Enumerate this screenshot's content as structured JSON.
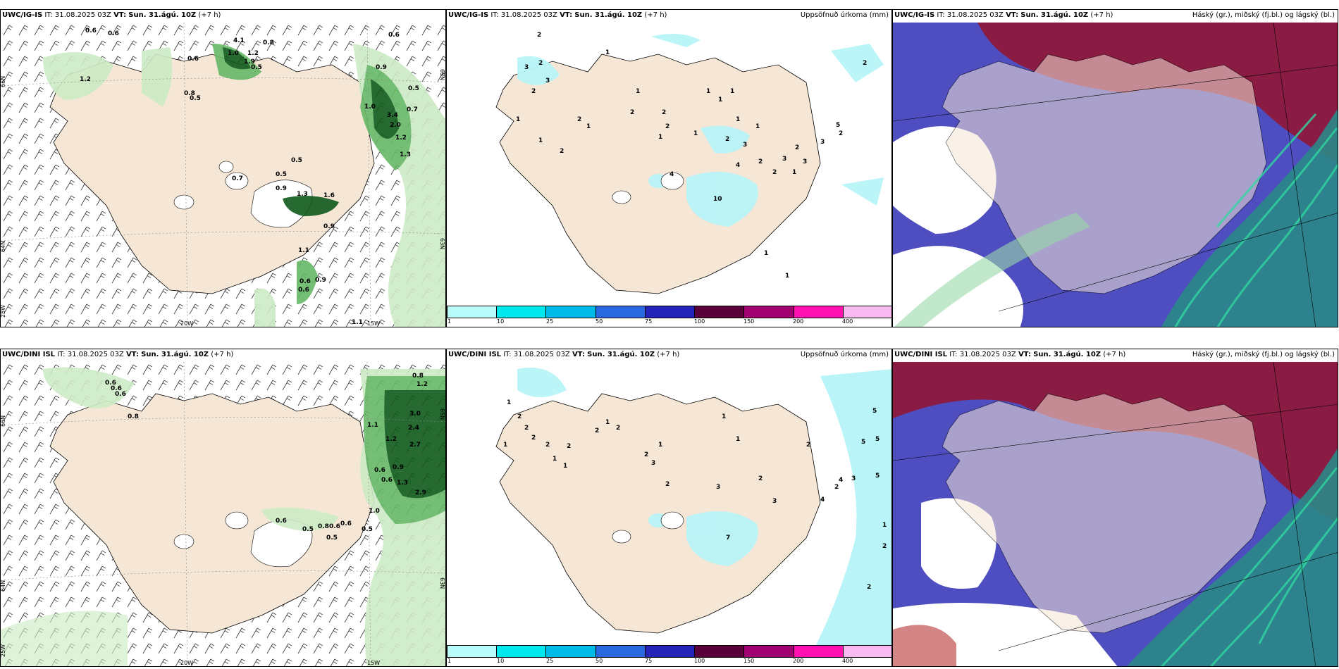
{
  "rows": [
    {
      "model": "UWC/IG-IS",
      "it_label": "IT:",
      "it_value": "31.08.2025 03Z",
      "vt_label": "VT:",
      "vt_value": "Sun. 31.ágú. 10Z",
      "lead": "(+7 h)",
      "precip_subtitle": "Uppsöfnuð úrkoma (mm)",
      "cloud_subtitle": "Háský (gr.), miðský (fj.bl.) og lágský (bl.)",
      "wind_labels": [
        "0.6",
        "0.6",
        "0.6",
        "4.1",
        "0.8",
        "1.0",
        "1.2",
        "1.9",
        "0.5",
        "0.8",
        "1.2",
        "0.5",
        "0.9",
        "0.6",
        "0.5",
        "0.7",
        "1.0",
        "3.4",
        "2.0",
        "1.2",
        "1.3",
        "0.5",
        "0.5",
        "0.9",
        "0.7",
        "1.3",
        "1.6",
        "0.9",
        "1.1",
        "0.6",
        "0.6",
        "0.9",
        "1.1"
      ],
      "precip_labels": [
        "2",
        "3",
        "2",
        "3",
        "2",
        "1",
        "1",
        "2",
        "2",
        "1",
        "1",
        "2",
        "2",
        "2",
        "1",
        "1",
        "1",
        "1",
        "4",
        "5",
        "2",
        "2",
        "3",
        "2",
        "3",
        "2",
        "1",
        "3",
        "10",
        "4",
        "3",
        "2",
        "1",
        "1",
        "1",
        "1",
        "1",
        "2",
        "1"
      ],
      "axis_labels": [
        "66N",
        "65N",
        "64N",
        "63N",
        "20W",
        "15W",
        "25W"
      ]
    },
    {
      "model": "UWC/DINI ISL",
      "it_label": "IT:",
      "it_value": "31.08.2025 03Z",
      "vt_label": "VT:",
      "vt_value": "Sun. 31.ágú. 10Z",
      "lead": "(+7 h)",
      "precip_subtitle": "Uppsöfnuð úrkoma (mm)",
      "cloud_subtitle": "Háský (gr.), miðský (fj.bl.) og lágský (bl.)",
      "wind_labels": [
        "0.6",
        "0.6",
        "0.6",
        "0.8",
        "0.8",
        "1.2",
        "3.0",
        "2.4",
        "1.1",
        "1.2",
        "2.7",
        "0.6",
        "0.9",
        "0.6",
        "1.3",
        "2.9",
        "0.6",
        "0.5",
        "0.8",
        "0.6",
        "0.5",
        "0.6",
        "1.0",
        "0.5"
      ],
      "precip_labels": [
        "1",
        "2",
        "2",
        "1",
        "2",
        "2",
        "1",
        "1",
        "2",
        "2",
        "1",
        "2",
        "2",
        "3",
        "1",
        "1",
        "1",
        "3",
        "2",
        "7",
        "4",
        "5",
        "3",
        "2",
        "3",
        "2",
        "4",
        "5",
        "5",
        "5",
        "2",
        "1",
        "2",
        "2"
      ],
      "axis_labels": [
        "66N",
        "65N",
        "64N",
        "63N",
        "20W",
        "15W",
        "25W"
      ]
    }
  ],
  "colorbar": {
    "ticks": [
      "1",
      "10",
      "25",
      "50",
      "75",
      "100",
      "150",
      "200",
      "400"
    ],
    "colors": [
      "#b9fbfb",
      "#00e8ee",
      "#00bbe8",
      "#2a68e0",
      "#2424b8",
      "#5a0038",
      "#a00070",
      "#ff10b0",
      "#f8b8f0"
    ]
  },
  "colors": {
    "land": "#f5e6d6",
    "sea": "#ffffff",
    "precip_light": "#cdebc5",
    "precip_mid": "#66b868",
    "precip_dark": "#0f5a1c",
    "precip_blue": "#b8f4f8",
    "cloud_high": "#8a1c44",
    "cloud_mid": "#4e4ec0",
    "cloud_low_teal": "#2a8888",
    "cloud_green": "#30d8a0"
  }
}
